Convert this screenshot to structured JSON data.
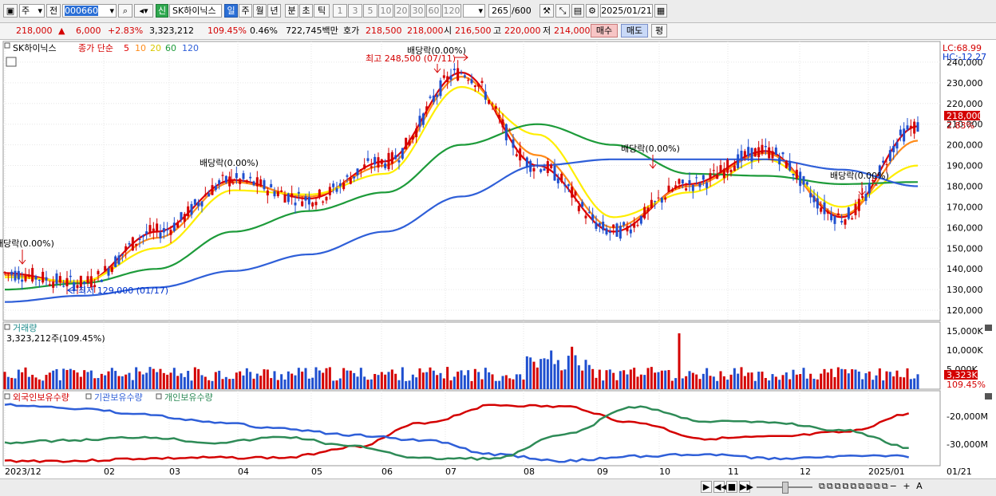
{
  "toolbar": {
    "market": "주",
    "prev_label": "전",
    "code": "000660",
    "stock_name": "SK하이닉스",
    "new_badge": "신",
    "periods": [
      "일",
      "주",
      "월",
      "년",
      "분",
      "초",
      "틱"
    ],
    "intervals": [
      "1",
      "3",
      "5",
      "10",
      "20",
      "30",
      "60",
      "120"
    ],
    "count": "265",
    "count_max": "/600",
    "date": "2025/01/21"
  },
  "info": {
    "price": "218,000",
    "change": "6,000",
    "change_pct": "+2.83%",
    "volume": "3,323,212",
    "vol_ratio": "109.45%",
    "turnover": "0.46%",
    "amount": "722,745백만",
    "quote_label": "호가",
    "ask": "218,500",
    "bid": "218,000",
    "open_label": "시",
    "open": "216,500",
    "high_label": "고",
    "high": "220,000",
    "low_label": "저",
    "low": "214,000",
    "buy": "매수",
    "sell": "매도",
    "eval": "평"
  },
  "price_panel": {
    "name": "SK하이닉스",
    "legend_label": "종가 단순",
    "ma_periods": [
      "5",
      "10",
      "20",
      "60",
      "120"
    ],
    "ma_colors": [
      "#e00000",
      "#ff8c1a",
      "#ffee00",
      "#1d9b3a",
      "#2f5fd8"
    ],
    "lc_label": "LC:68.99",
    "hc_label": "HC:-12.27",
    "current_price_tag": "218,000",
    "current_pct_tag": "2.83%",
    "high_note": "최고 248,500 (07/11)",
    "low_note": "최저 129,000 (01/17)",
    "dividend_notes": [
      "배당락(0.00%)",
      "배당락(0.00%)",
      "배당락(0.00%)",
      "배당락(0.00%)",
      "배당락(0.00%)"
    ],
    "y_ticks": [
      "240,000",
      "230,000",
      "220,000",
      "210,000",
      "200,000",
      "190,000",
      "180,000",
      "170,000",
      "160,000",
      "150,000",
      "140,000",
      "130,000",
      "120,000"
    ]
  },
  "volume_panel": {
    "title": "거래량",
    "value": "3,323,212주(109.45%)",
    "y_ticks": [
      "15,000K",
      "10,000K",
      "5,000K"
    ],
    "tag_value": "3,323K",
    "tag_pct": "109.45%"
  },
  "holdings_panel": {
    "legend": [
      "외국인보유수량",
      "기관보유수량",
      "개인보유수량"
    ],
    "colors": [
      "#d40000",
      "#2f5fd8",
      "#2e8b57"
    ],
    "y_ticks": [
      "-20,000M",
      "-30,000M"
    ]
  },
  "x_axis": [
    "2023/12",
    "02",
    "03",
    "04",
    "05",
    "06",
    "07",
    "08",
    "09",
    "10",
    "11",
    "12",
    "2025/01",
    "01/21"
  ],
  "chart_data": {
    "type": "line",
    "title": "",
    "xlabel": "",
    "ylabel": "",
    "x": [
      "2023/12",
      "02",
      "03",
      "04",
      "05",
      "06",
      "07",
      "08",
      "09",
      "10",
      "11",
      "12",
      "2025/01"
    ],
    "series": [
      {
        "name": "5",
        "values": [
          138000,
          133000,
          158000,
          183000,
          174000,
          192000,
          235000,
          190000,
          158000,
          181000,
          197000,
          165000,
          209000
        ]
      },
      {
        "name": "10",
        "values": [
          137000,
          133000,
          155000,
          182000,
          175000,
          190000,
          233000,
          195000,
          160000,
          180000,
          196000,
          166000,
          202000
        ]
      },
      {
        "name": "20",
        "values": [
          136000,
          134000,
          150000,
          178000,
          176000,
          186000,
          228000,
          205000,
          165000,
          177000,
          193000,
          170000,
          190000
        ]
      },
      {
        "name": "60",
        "values": [
          130000,
          133000,
          140000,
          158000,
          168000,
          177000,
          200000,
          210000,
          200000,
          186000,
          185000,
          181000,
          182000
        ]
      },
      {
        "name": "120",
        "values": [
          124000,
          127000,
          131000,
          139000,
          147000,
          158000,
          175000,
          190000,
          193000,
          193000,
          193000,
          188000,
          180000
        ]
      }
    ],
    "ylim": [
      115000,
      250000
    ]
  }
}
